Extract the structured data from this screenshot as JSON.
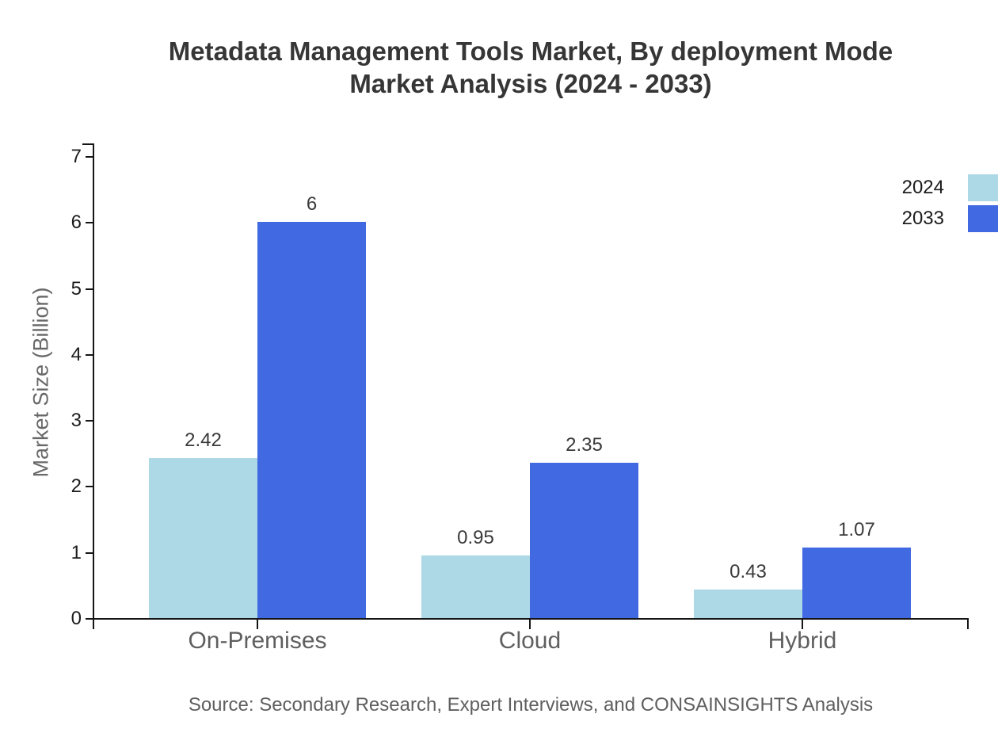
{
  "title": {
    "line1": "Metadata Management Tools Market, By deployment Mode",
    "line2": "Market Analysis (2024 - 2033)"
  },
  "source": "Source: Secondary Research, Expert Interviews, and CONSAINSIGHTS Analysis",
  "chart_data": {
    "type": "bar",
    "title": "Metadata Management Tools Market, By deployment Mode Market Analysis (2024 - 2033)",
    "xlabel": "",
    "ylabel": "Market Size (Billion)",
    "categories": [
      "On-Premises",
      "Cloud",
      "Hybrid"
    ],
    "series": [
      {
        "name": "2024",
        "color": "#ADD8E6",
        "values": [
          2.42,
          0.95,
          0.43
        ],
        "value_labels": [
          "2.42",
          "0.95",
          "0.43"
        ]
      },
      {
        "name": "2033",
        "color": "#4169E1",
        "values": [
          6,
          2.35,
          1.07
        ],
        "value_labels": [
          "6",
          "2.35",
          "1.07"
        ]
      }
    ],
    "ylim": [
      0,
      7
    ],
    "yticks": [
      0,
      1,
      2,
      3,
      4,
      5,
      6,
      7
    ],
    "grid": false,
    "legend_position": "top-right"
  },
  "colors": {
    "bar_2024": "#ADD8E6",
    "bar_2033": "#4169E1",
    "axis": "#151515",
    "title_text": "#363636",
    "muted_text": "#5f5f5f"
  }
}
